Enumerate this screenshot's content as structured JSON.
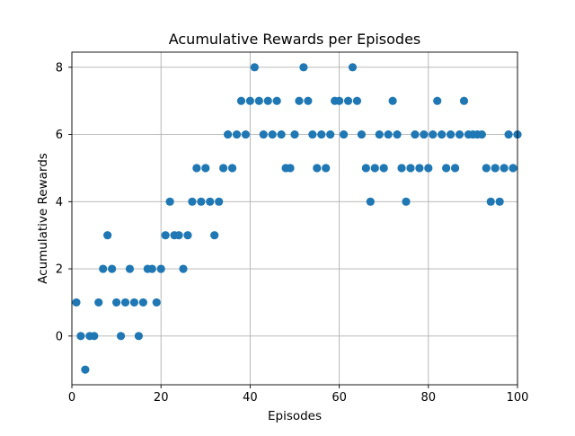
{
  "chart_data": {
    "type": "scatter",
    "title": "Acumulative Rewards per Episodes",
    "xlabel": "Episodes",
    "ylabel": "Acumulative Rewards",
    "xlim": [
      0,
      100
    ],
    "ylim": [
      -1.45,
      8.45
    ],
    "xticks": [
      0,
      20,
      40,
      60,
      80,
      100
    ],
    "yticks": [
      0,
      2,
      4,
      6,
      8
    ],
    "xtick_labels": [
      "0",
      "20",
      "40",
      "60",
      "80",
      "100"
    ],
    "ytick_labels": [
      "0",
      "2",
      "4",
      "6",
      "8"
    ],
    "grid": true,
    "marker_color": "#1f77b4",
    "series": [
      {
        "x": [
          1,
          2,
          3,
          4,
          5,
          6,
          7,
          8,
          9,
          10,
          11,
          12,
          13,
          14,
          15,
          16,
          17,
          18,
          19,
          20,
          21,
          22,
          23,
          24,
          25,
          26,
          27,
          28,
          29,
          30,
          31,
          32,
          33,
          34,
          35,
          36,
          37,
          38,
          39,
          40,
          41,
          42,
          43,
          44,
          45,
          46,
          47,
          48,
          49,
          50,
          51,
          52,
          53,
          54,
          55,
          56,
          57,
          58,
          59,
          60,
          61,
          62,
          63,
          64,
          65,
          66,
          67,
          68,
          69,
          70,
          71,
          72,
          73,
          74,
          75,
          76,
          77,
          78,
          79,
          80,
          81,
          82,
          83,
          84,
          85,
          86,
          87,
          88,
          89,
          90,
          91,
          92,
          93,
          94,
          95,
          96,
          97,
          98,
          99,
          100
        ],
        "y": [
          1,
          0,
          -1,
          0,
          0,
          1,
          2,
          3,
          2,
          1,
          0,
          1,
          2,
          1,
          0,
          1,
          2,
          2,
          1,
          2,
          3,
          4,
          3,
          3,
          2,
          3,
          4,
          5,
          4,
          5,
          4,
          3,
          4,
          5,
          6,
          5,
          6,
          7,
          6,
          7,
          8,
          7,
          6,
          7,
          6,
          7,
          6,
          5,
          5,
          6,
          7,
          8,
          7,
          6,
          5,
          6,
          5,
          6,
          7,
          7,
          6,
          7,
          8,
          7,
          6,
          5,
          4,
          5,
          6,
          5,
          6,
          7,
          6,
          5,
          4,
          5,
          6,
          5,
          6,
          5,
          6,
          7,
          6,
          5,
          6,
          5,
          6,
          7,
          6,
          6,
          6,
          6,
          5,
          4,
          5,
          4,
          5,
          6,
          5,
          6
        ]
      }
    ]
  }
}
